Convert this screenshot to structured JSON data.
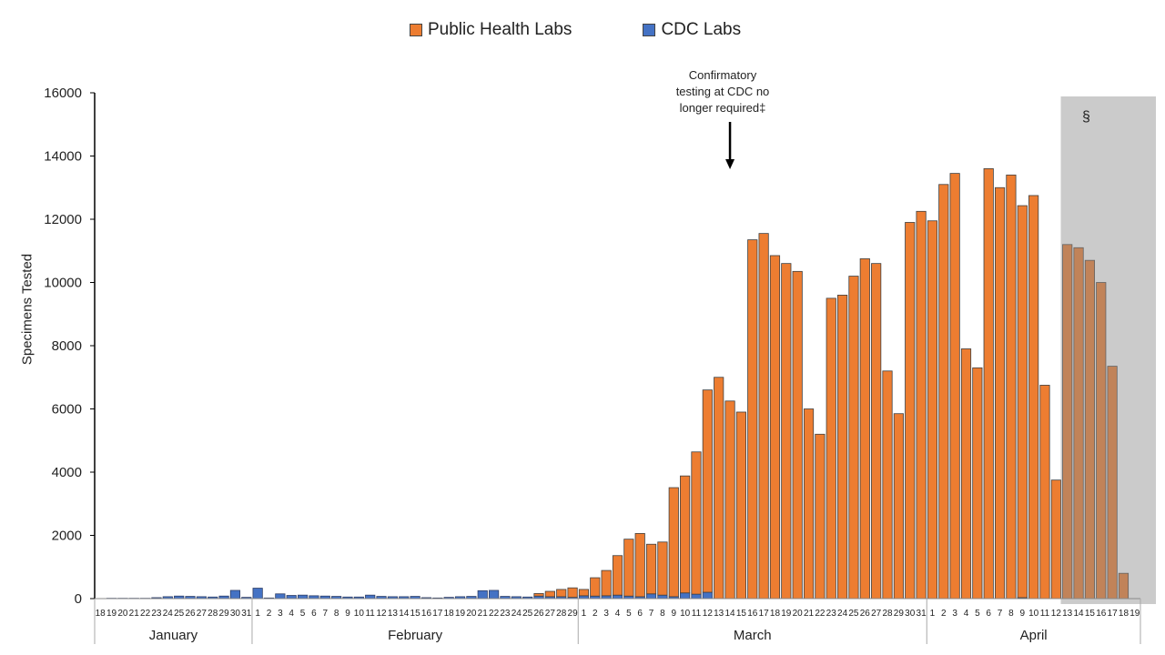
{
  "legend": {
    "public_health_label": "Public Health Labs",
    "cdc_label": "CDC Labs"
  },
  "annotation": {
    "line1": "Confirmatory",
    "line2": "testing at CDC no",
    "line3": "longer required‡"
  },
  "shade_mark": "§",
  "chart_data": {
    "type": "bar",
    "stacked": true,
    "ylabel": "Specimens Tested",
    "ylim": [
      0,
      16000
    ],
    "yticks": [
      0,
      2000,
      4000,
      6000,
      8000,
      10000,
      12000,
      14000,
      16000
    ],
    "months": [
      {
        "name": "January",
        "days": [
          "18",
          "19",
          "20",
          "21",
          "22",
          "23",
          "24",
          "25",
          "26",
          "27",
          "28",
          "29",
          "30",
          "31"
        ]
      },
      {
        "name": "February",
        "days": [
          "1",
          "2",
          "3",
          "4",
          "5",
          "6",
          "7",
          "8",
          "9",
          "10",
          "11",
          "12",
          "13",
          "14",
          "15",
          "16",
          "17",
          "18",
          "19",
          "20",
          "21",
          "22",
          "23",
          "24",
          "25",
          "26",
          "27",
          "28",
          "29"
        ]
      },
      {
        "name": "March",
        "days": [
          "1",
          "2",
          "3",
          "4",
          "5",
          "6",
          "7",
          "8",
          "9",
          "10",
          "11",
          "12",
          "13",
          "14",
          "15",
          "16",
          "17",
          "18",
          "19",
          "20",
          "21",
          "22",
          "23",
          "24",
          "25",
          "26",
          "27",
          "28",
          "29",
          "30",
          "31"
        ]
      },
      {
        "name": "April",
        "days": [
          "1",
          "2",
          "3",
          "4",
          "5",
          "6",
          "7",
          "8",
          "9",
          "10",
          "11",
          "12",
          "13",
          "14",
          "15",
          "16",
          "17",
          "18",
          "19"
        ]
      }
    ],
    "series": [
      {
        "name": "CDC Labs",
        "color": "#4472c4",
        "values": [
          0,
          10,
          10,
          10,
          10,
          30,
          60,
          80,
          70,
          60,
          50,
          80,
          260,
          40,
          330,
          20,
          150,
          100,
          110,
          90,
          80,
          70,
          50,
          50,
          110,
          70,
          60,
          60,
          70,
          30,
          20,
          40,
          60,
          70,
          250,
          260,
          70,
          60,
          50,
          80,
          60,
          60,
          40,
          90,
          80,
          90,
          110,
          80,
          60,
          150,
          110,
          60,
          180,
          140,
          200,
          0,
          0,
          0,
          0,
          0,
          0,
          0,
          0,
          0,
          0,
          0,
          0,
          0,
          0,
          0,
          0,
          0,
          0,
          0,
          0,
          0,
          0,
          0,
          0,
          0,
          0,
          0,
          30,
          0,
          0,
          0,
          0,
          0,
          0,
          0,
          0,
          0,
          0,
          0,
          0,
          0,
          0,
          0,
          0
        ]
      },
      {
        "name": "Public Health Labs",
        "color": "#ed7d31",
        "values": [
          0,
          0,
          0,
          0,
          0,
          0,
          0,
          0,
          0,
          0,
          0,
          0,
          0,
          0,
          0,
          0,
          0,
          0,
          0,
          0,
          0,
          0,
          0,
          0,
          0,
          0,
          0,
          0,
          0,
          0,
          0,
          0,
          0,
          0,
          0,
          0,
          0,
          0,
          0,
          80,
          170,
          230,
          300,
          200,
          580,
          800,
          1250,
          1800,
          2000,
          1570,
          1680,
          3450,
          3700,
          4500,
          6400,
          7000,
          6250,
          5900,
          11350,
          11550,
          10850,
          10600,
          10350,
          6000,
          5200,
          9500,
          9600,
          10200,
          10750,
          10600,
          7200,
          5850,
          11900,
          12250,
          11950,
          13100,
          13450,
          7900,
          7300,
          13600,
          13000,
          13400,
          12400,
          12750,
          6750,
          3750,
          11200,
          11100,
          10700,
          10000,
          7350,
          800,
          0
        ]
      }
    ],
    "shaded_from": "April 13",
    "grid": false
  }
}
